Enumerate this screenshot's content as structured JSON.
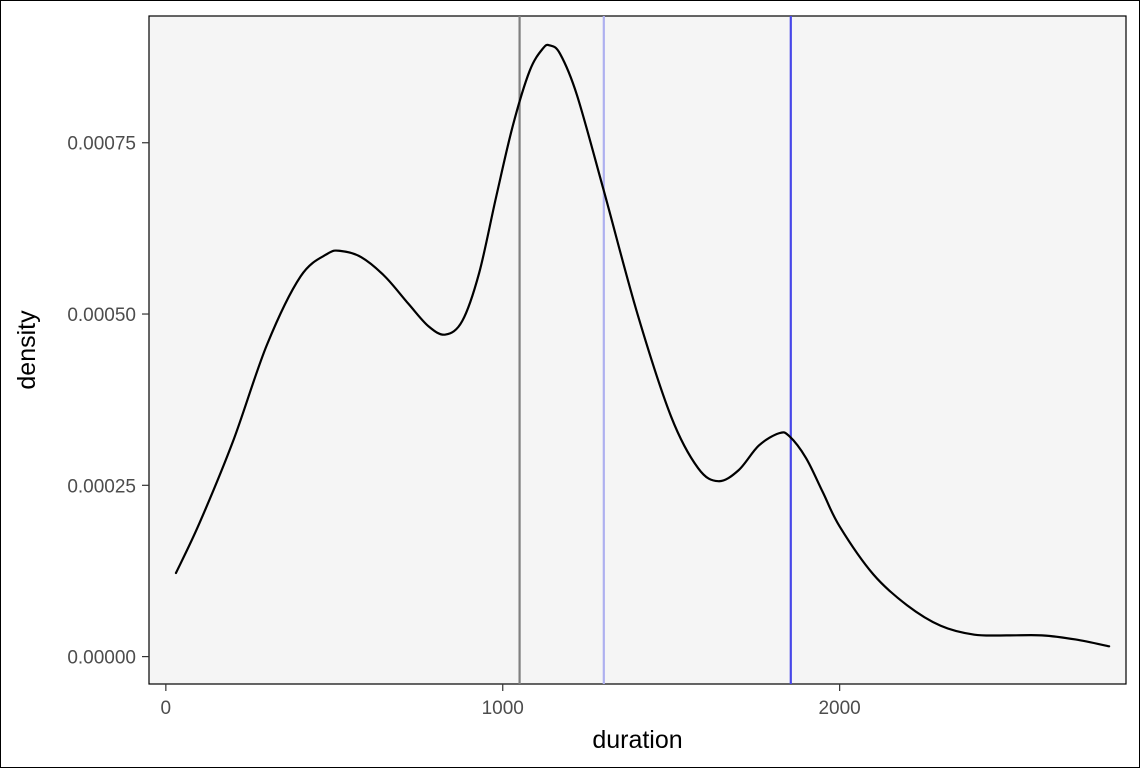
{
  "chart_data": {
    "type": "line",
    "title": "",
    "xlabel": "duration",
    "ylabel": "density",
    "xlim": [
      -50,
      2850
    ],
    "ylim": [
      -4e-05,
      0.000935
    ],
    "x_ticks": [
      0,
      1000,
      2000
    ],
    "x_tick_labels": [
      "0",
      "1000",
      "2000"
    ],
    "y_ticks": [
      0,
      0.00025,
      0.0005,
      0.00075
    ],
    "y_tick_labels": [
      "0.00000",
      "0.00025",
      "0.00050",
      "0.00075"
    ],
    "grid": false,
    "legend": "none",
    "colors": {
      "panel_background": "#f5f5f5",
      "panel_border": "#000000",
      "density_line": "#000000"
    },
    "series": [
      {
        "x": [
          30,
          100,
          200,
          300,
          400,
          480,
          520,
          580,
          650,
          720,
          780,
          830,
          880,
          930,
          980,
          1030,
          1080,
          1120,
          1140,
          1170,
          1220,
          1300,
          1400,
          1500,
          1580,
          1640,
          1700,
          1760,
          1820,
          1850,
          1900,
          1950,
          2000,
          2100,
          2200,
          2300,
          2400,
          2500,
          2600,
          2700,
          2800
        ],
        "y": [
          0.000122,
          0.000195,
          0.000315,
          0.000455,
          0.000555,
          0.000588,
          0.000592,
          0.000583,
          0.000555,
          0.000515,
          0.000482,
          0.00047,
          0.00049,
          0.00056,
          0.00067,
          0.000775,
          0.000855,
          0.000888,
          0.000892,
          0.00088,
          0.00082,
          0.00068,
          0.0005,
          0.00035,
          0.000275,
          0.000256,
          0.000272,
          0.000308,
          0.000326,
          0.000322,
          0.00029,
          0.00024,
          0.00019,
          0.00012,
          7.5e-05,
          4.5e-05,
          3.2e-05,
          3.1e-05,
          3.1e-05,
          2.5e-05,
          1.5e-05
        ]
      }
    ],
    "vertical_lines": [
      {
        "x": 1050,
        "color": "#808080"
      },
      {
        "x": 1300,
        "color": "#aeb0ef"
      },
      {
        "x": 1855,
        "color": "#4747e8"
      }
    ]
  }
}
